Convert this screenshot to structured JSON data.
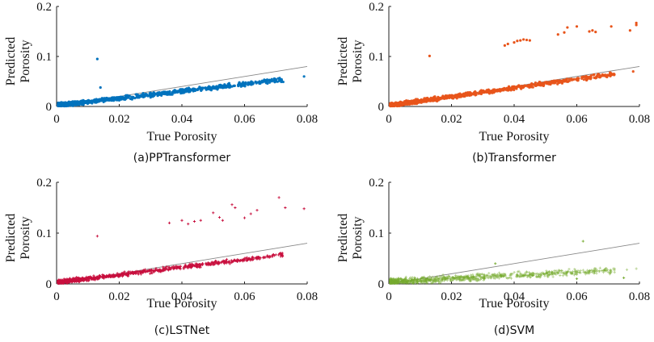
{
  "chart_data": [
    {
      "type": "scatter",
      "caption": "(a)PPTransformer",
      "xlabel": "True Porosity",
      "ylabel_line1": "Predicted",
      "ylabel_line2": "Porosity",
      "xlim": [
        0,
        0.08
      ],
      "ylim": [
        0,
        0.2
      ],
      "xticks": [
        "0",
        "0.02",
        "0.04",
        "0.06",
        "0.08"
      ],
      "yticks": [
        "0",
        "0.1",
        "0.2"
      ],
      "color": "#0072BD",
      "marker": "dot",
      "reference_line": {
        "x": [
          0,
          0.08
        ],
        "y": [
          0,
          0.08
        ],
        "color": "#888888"
      },
      "trend": {
        "slope": 0.72,
        "intercept": 0.002,
        "noise": 0.004
      },
      "points_x": [
        0.001,
        0.002,
        0.003,
        0.004,
        0.005,
        0.006,
        0.007,
        0.008,
        0.009,
        0.01,
        0.011,
        0.012,
        0.013,
        0.014,
        0.015,
        0.016,
        0.017,
        0.018,
        0.019,
        0.02,
        0.022,
        0.024,
        0.026,
        0.028,
        0.03,
        0.032,
        0.034,
        0.036,
        0.038,
        0.04,
        0.042,
        0.045,
        0.048,
        0.05,
        0.053,
        0.056,
        0.058,
        0.06,
        0.062,
        0.065,
        0.068,
        0.07,
        0.079
      ],
      "points_y": [
        0.003,
        0.004,
        0.004,
        0.005,
        0.006,
        0.006,
        0.007,
        0.008,
        0.008,
        0.009,
        0.01,
        0.011,
        0.011,
        0.012,
        0.013,
        0.013,
        0.014,
        0.015,
        0.016,
        0.016,
        0.018,
        0.019,
        0.02,
        0.022,
        0.023,
        0.025,
        0.026,
        0.027,
        0.028,
        0.03,
        0.031,
        0.033,
        0.035,
        0.036,
        0.038,
        0.04,
        0.041,
        0.043,
        0.044,
        0.046,
        0.048,
        0.05,
        0.06
      ],
      "outliers": [
        {
          "x": 0.013,
          "y": 0.095
        },
        {
          "x": 0.014,
          "y": 0.038
        }
      ]
    },
    {
      "type": "scatter",
      "caption": "(b)Transformer",
      "xlabel": "True Porosity",
      "ylabel_line1": "Predicted",
      "ylabel_line2": "Porosity",
      "xlim": [
        0,
        0.08
      ],
      "ylim": [
        0,
        0.2
      ],
      "xticks": [
        "0",
        "0.02",
        "0.04",
        "0.06",
        "0.08"
      ],
      "yticks": [
        "0",
        "0.1",
        "0.2"
      ],
      "color": "#E8541A",
      "marker": "dot",
      "reference_line": {
        "x": [
          0,
          0.08
        ],
        "y": [
          0,
          0.08
        ],
        "color": "#888888"
      },
      "trend": {
        "slope": 0.88,
        "intercept": 0.002,
        "noise": 0.004
      },
      "points_x": [
        0.001,
        0.003,
        0.005,
        0.007,
        0.009,
        0.011,
        0.013,
        0.015,
        0.017,
        0.019,
        0.021,
        0.023,
        0.025,
        0.027,
        0.03,
        0.033,
        0.036,
        0.039,
        0.042,
        0.045,
        0.048,
        0.052,
        0.056,
        0.06,
        0.064,
        0.068,
        0.072,
        0.078
      ],
      "points_y": [
        0.003,
        0.004,
        0.006,
        0.008,
        0.01,
        0.011,
        0.013,
        0.015,
        0.017,
        0.018,
        0.02,
        0.022,
        0.023,
        0.025,
        0.028,
        0.03,
        0.033,
        0.036,
        0.038,
        0.041,
        0.043,
        0.047,
        0.05,
        0.054,
        0.057,
        0.061,
        0.064,
        0.07
      ],
      "outliers": [
        {
          "x": 0.013,
          "y": 0.101
        },
        {
          "x": 0.037,
          "y": 0.122
        },
        {
          "x": 0.038,
          "y": 0.125
        },
        {
          "x": 0.04,
          "y": 0.128
        },
        {
          "x": 0.041,
          "y": 0.131
        },
        {
          "x": 0.042,
          "y": 0.132
        },
        {
          "x": 0.043,
          "y": 0.134
        },
        {
          "x": 0.044,
          "y": 0.133
        },
        {
          "x": 0.045,
          "y": 0.132
        },
        {
          "x": 0.054,
          "y": 0.144
        },
        {
          "x": 0.056,
          "y": 0.148
        },
        {
          "x": 0.057,
          "y": 0.158
        },
        {
          "x": 0.06,
          "y": 0.16
        },
        {
          "x": 0.064,
          "y": 0.15
        },
        {
          "x": 0.066,
          "y": 0.149
        },
        {
          "x": 0.071,
          "y": 0.16
        },
        {
          "x": 0.077,
          "y": 0.152
        },
        {
          "x": 0.079,
          "y": 0.167
        },
        {
          "x": 0.079,
          "y": 0.163
        },
        {
          "x": 0.065,
          "y": 0.152
        }
      ],
      "cluster_near_0": true
    },
    {
      "type": "scatter",
      "caption": "(c)LSTNet",
      "xlabel": "True Porosity",
      "ylabel_line1": "Predicted",
      "ylabel_line2": "Porosity",
      "xlim": [
        0,
        0.08
      ],
      "ylim": [
        0,
        0.2
      ],
      "xticks": [
        "0",
        "0.02",
        "0.04",
        "0.06",
        "0.08"
      ],
      "yticks": [
        "0",
        "0.1",
        "0.2"
      ],
      "color": "#C8103E",
      "marker": "plus",
      "reference_line": {
        "x": [
          0,
          0.08
        ],
        "y": [
          0,
          0.08
        ],
        "color": "#888888"
      },
      "trend": {
        "slope": 0.75,
        "intercept": 0.003,
        "noise": 0.004
      },
      "points_x": [
        0.001,
        0.003,
        0.005,
        0.007,
        0.009,
        0.011,
        0.013,
        0.015,
        0.017,
        0.019,
        0.021,
        0.023,
        0.025,
        0.027,
        0.03,
        0.033,
        0.036,
        0.039,
        0.042,
        0.045,
        0.048,
        0.052,
        0.056,
        0.06,
        0.064
      ],
      "points_y": [
        0.004,
        0.005,
        0.007,
        0.008,
        0.01,
        0.011,
        0.013,
        0.014,
        0.016,
        0.017,
        0.019,
        0.02,
        0.022,
        0.024,
        0.026,
        0.028,
        0.03,
        0.032,
        0.034,
        0.037,
        0.039,
        0.041,
        0.044,
        0.048,
        0.052
      ],
      "outliers": [
        {
          "x": 0.013,
          "y": 0.094
        },
        {
          "x": 0.036,
          "y": 0.12
        },
        {
          "x": 0.04,
          "y": 0.125
        },
        {
          "x": 0.042,
          "y": 0.118
        },
        {
          "x": 0.044,
          "y": 0.123
        },
        {
          "x": 0.046,
          "y": 0.125
        },
        {
          "x": 0.05,
          "y": 0.14
        },
        {
          "x": 0.052,
          "y": 0.131
        },
        {
          "x": 0.053,
          "y": 0.125
        },
        {
          "x": 0.056,
          "y": 0.156
        },
        {
          "x": 0.057,
          "y": 0.15
        },
        {
          "x": 0.06,
          "y": 0.13
        },
        {
          "x": 0.062,
          "y": 0.138
        },
        {
          "x": 0.064,
          "y": 0.145
        },
        {
          "x": 0.071,
          "y": 0.17
        },
        {
          "x": 0.073,
          "y": 0.15
        },
        {
          "x": 0.079,
          "y": 0.148
        }
      ]
    },
    {
      "type": "scatter",
      "caption": "(d)SVM",
      "xlabel": "True Porosity",
      "ylabel_line1": "Predicted",
      "ylabel_line2": "Porosity",
      "xlim": [
        0,
        0.08
      ],
      "ylim": [
        0,
        0.2
      ],
      "xticks": [
        "0",
        "0.02",
        "0.04",
        "0.06",
        "0.08"
      ],
      "yticks": [
        "0",
        "0.1",
        "0.2"
      ],
      "color": "#77AC30",
      "marker": "plus",
      "reference_line": {
        "x": [
          0,
          0.08
        ],
        "y": [
          0,
          0.08
        ],
        "color": "#888888"
      },
      "trend": {
        "slope": 0.32,
        "intercept": 0.004,
        "noise": 0.006
      },
      "points_x": [
        0.001,
        0.003,
        0.005,
        0.007,
        0.009,
        0.011,
        0.013,
        0.015,
        0.017,
        0.019,
        0.021,
        0.023,
        0.025,
        0.027,
        0.03,
        0.033,
        0.036,
        0.039,
        0.042,
        0.045,
        0.048,
        0.052,
        0.056,
        0.06,
        0.064,
        0.068,
        0.072,
        0.076,
        0.079
      ],
      "points_y": [
        0.004,
        0.005,
        0.006,
        0.006,
        0.007,
        0.008,
        0.009,
        0.009,
        0.01,
        0.01,
        0.011,
        0.012,
        0.013,
        0.013,
        0.014,
        0.015,
        0.016,
        0.017,
        0.018,
        0.019,
        0.02,
        0.021,
        0.022,
        0.024,
        0.025,
        0.026,
        0.027,
        0.028,
        0.03
      ],
      "outliers": [
        {
          "x": 0.062,
          "y": 0.084
        },
        {
          "x": 0.034,
          "y": 0.04
        },
        {
          "x": 0.06,
          "y": 0.01
        },
        {
          "x": 0.075,
          "y": 0.012
        }
      ]
    }
  ]
}
